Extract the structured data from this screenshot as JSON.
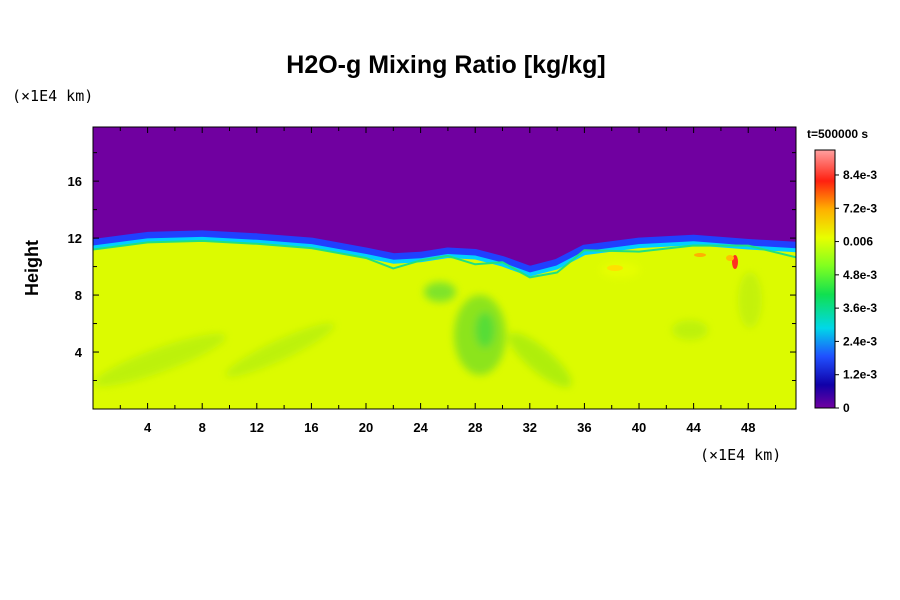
{
  "chart_data": {
    "type": "heatmap",
    "title": "H2O-g Mixing Ratio [kg/kg]",
    "ylabel": "Height",
    "y_unit": "(×1E4 km)",
    "x_unit": "(×1E4 km)",
    "time_label": "t=500000 s",
    "xlim": [
      0,
      51.5
    ],
    "ylim": [
      0,
      19.8
    ],
    "x_ticks": [
      "4",
      "8",
      "12",
      "16",
      "20",
      "24",
      "28",
      "32",
      "36",
      "40",
      "44",
      "48"
    ],
    "y_ticks": [
      "4",
      "8",
      "12",
      "16"
    ],
    "colorbar": {
      "min": 0,
      "max": 0.0093,
      "tick_labels": [
        "8.4e-3",
        "7.2e-3",
        "0.006",
        "4.8e-3",
        "3.6e-3",
        "2.4e-3",
        "1.2e-3",
        "0"
      ],
      "colors": [
        "#7000a0",
        "#2030ff",
        "#00c8ff",
        "#00ff90",
        "#60ff40",
        "#ddff00",
        "#ffd000",
        "#ff8000",
        "#ff2020",
        "#ff8a8a"
      ]
    },
    "fields": {
      "upper_layer_value": 0,
      "lower_layer_value": 0.0061,
      "interface_height": [
        [
          0,
          11.2
        ],
        [
          4,
          11.7
        ],
        [
          8,
          11.8
        ],
        [
          12,
          11.6
        ],
        [
          16,
          11.3
        ],
        [
          20,
          10.6
        ],
        [
          22,
          10.2
        ],
        [
          24,
          10.3
        ],
        [
          26,
          10.6
        ],
        [
          28,
          10.5
        ],
        [
          30,
          10.0
        ],
        [
          32,
          9.3
        ],
        [
          34,
          9.8
        ],
        [
          36,
          10.8
        ],
        [
          40,
          11.3
        ],
        [
          44,
          11.5
        ],
        [
          48,
          11.2
        ],
        [
          51.5,
          11.0
        ]
      ]
    }
  }
}
